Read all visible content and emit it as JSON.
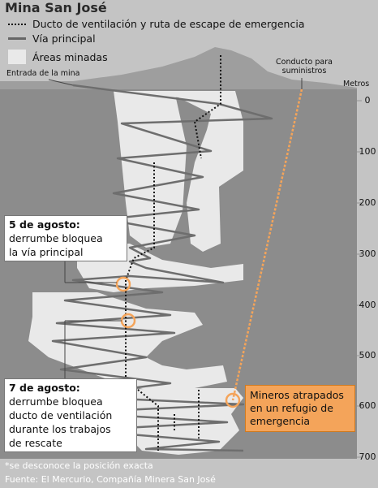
{
  "title": "Mina San José",
  "legend": {
    "vent": "Ducto de ventilación y ruta de escape de emergencia",
    "main": "Vía principal",
    "areas": "Áreas minadas"
  },
  "labels": {
    "entrada": "Entrada de la mina",
    "conducto_1": "Conducto para",
    "conducto_2": "suministros",
    "metros": "Metros"
  },
  "depth_ticks": [
    "0",
    "100",
    "200",
    "300",
    "400",
    "500",
    "600",
    "700"
  ],
  "box1": {
    "date": "5 de agosto:",
    "line1": "derrumbe bloquea",
    "line2": "la vía principal"
  },
  "box2": {
    "date": "7 de agosto:",
    "line1": "derrumbe bloquea",
    "line2": "ducto de ventilación",
    "line3": "durante los trabajos",
    "line4": "de rescate"
  },
  "miners": {
    "line1": "Mineros atrapados",
    "line2": "en un refugio de",
    "line3": "emergencia"
  },
  "note": "*se desconoce la posición exacta",
  "source": "Fuente: El Mercurio, Compañía Minera San José",
  "colors": {
    "rock": "#8c8c8c",
    "mined": "#e9e9e9",
    "tunnel": "#6e6e6e",
    "orange": "#f4a45a"
  }
}
